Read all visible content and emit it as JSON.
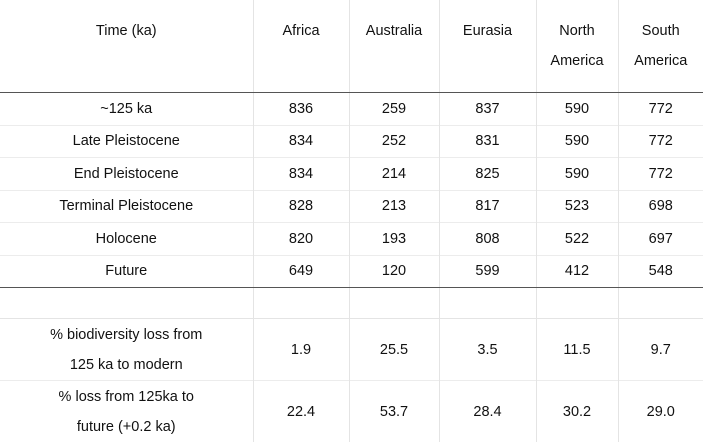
{
  "header": {
    "time": "Time (ka)",
    "columns": [
      {
        "line1": "Africa",
        "line2": ""
      },
      {
        "line1": "Australia",
        "line2": ""
      },
      {
        "line1": "Eurasia",
        "line2": ""
      },
      {
        "line1": "North",
        "line2": "America"
      },
      {
        "line1": "South",
        "line2": "America"
      }
    ]
  },
  "rows": [
    {
      "label": "~125 ka",
      "values": [
        "836",
        "259",
        "837",
        "590",
        "772"
      ]
    },
    {
      "label": "Late Pleistocene",
      "values": [
        "834",
        "252",
        "831",
        "590",
        "772"
      ]
    },
    {
      "label": "End Pleistocene",
      "values": [
        "834",
        "214",
        "825",
        "590",
        "772"
      ]
    },
    {
      "label": "Terminal Pleistocene",
      "values": [
        "828",
        "213",
        "817",
        "523",
        "698"
      ]
    },
    {
      "label": "Holocene",
      "values": [
        "820",
        "193",
        "808",
        "522",
        "697"
      ]
    },
    {
      "label": "Future",
      "values": [
        "649",
        "120",
        "599",
        "412",
        "548"
      ]
    }
  ],
  "stats": [
    {
      "label_line1": "% biodiversity loss from",
      "label_line2": "125 ka to modern",
      "values": [
        "1.9",
        "25.5",
        "3.5",
        "11.5",
        "9.7"
      ]
    },
    {
      "label_line1": "% loss from 125ka to",
      "label_line2": "future (+0.2 ka)",
      "values": [
        "22.4",
        "53.7",
        "28.4",
        "30.2",
        "29.0"
      ]
    }
  ]
}
